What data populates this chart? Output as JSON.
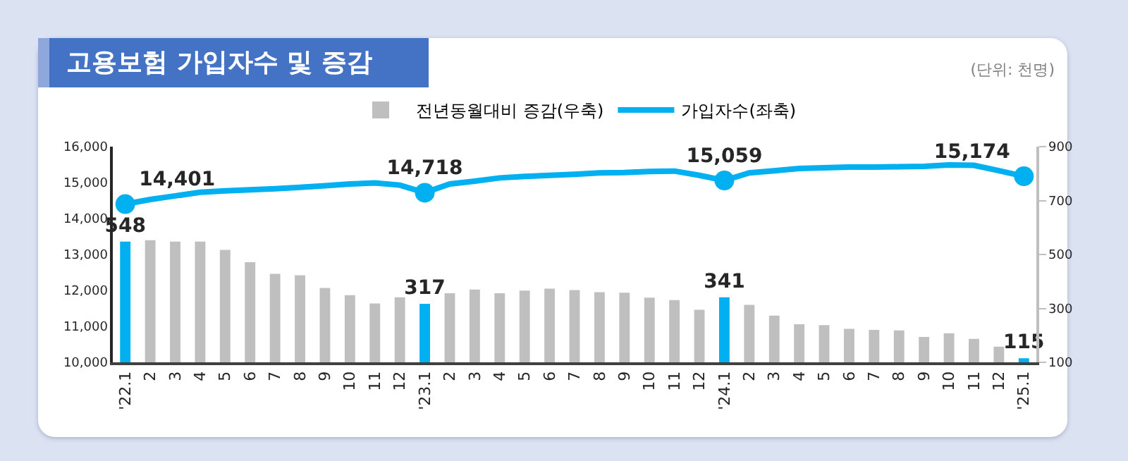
{
  "chart_data": {
    "type": "bar",
    "title": "고용보험 가입자수 및 증감",
    "annotations": [
      "(단위: 천명)"
    ],
    "categories": [
      "'22.1",
      "2",
      "3",
      "4",
      "5",
      "6",
      "7",
      "8",
      "9",
      "10",
      "11",
      "12",
      "'23.1",
      "2",
      "3",
      "4",
      "5",
      "6",
      "7",
      "8",
      "9",
      "10",
      "11",
      "12",
      "'24.1",
      "2",
      "3",
      "4",
      "5",
      "6",
      "7",
      "8",
      "9",
      "10",
      "11",
      "12",
      "'25.1"
    ],
    "series": [
      {
        "name": "전년동월대비 증감(우축)",
        "axis": "y2",
        "color": "#bfbfbf",
        "colors": [
          "#00b0f0",
          "#bfbfbf",
          "#bfbfbf",
          "#bfbfbf",
          "#bfbfbf",
          "#bfbfbf",
          "#bfbfbf",
          "#bfbfbf",
          "#bfbfbf",
          "#bfbfbf",
          "#bfbfbf",
          "#bfbfbf",
          "#00b0f0",
          "#bfbfbf",
          "#bfbfbf",
          "#bfbfbf",
          "#bfbfbf",
          "#bfbfbf",
          "#bfbfbf",
          "#bfbfbf",
          "#bfbfbf",
          "#bfbfbf",
          "#bfbfbf",
          "#bfbfbf",
          "#00b0f0",
          "#bfbfbf",
          "#bfbfbf",
          "#bfbfbf",
          "#bfbfbf",
          "#bfbfbf",
          "#bfbfbf",
          "#bfbfbf",
          "#bfbfbf",
          "#bfbfbf",
          "#bfbfbf",
          "#bfbfbf",
          "#00b0f0"
        ],
        "values": [
          548,
          553,
          548,
          548,
          517,
          471,
          428,
          423,
          376,
          349,
          318,
          341,
          317,
          356,
          370,
          356,
          366,
          373,
          368,
          360,
          358,
          340,
          331,
          295,
          341,
          313,
          273,
          241,
          238,
          224,
          220,
          218,
          194,
          208,
          187,
          158,
          115
        ],
        "value_labels": [
          "548",
          null,
          null,
          null,
          null,
          null,
          null,
          null,
          null,
          null,
          null,
          null,
          "317",
          null,
          null,
          null,
          null,
          null,
          null,
          null,
          null,
          null,
          null,
          null,
          "341",
          null,
          null,
          null,
          null,
          null,
          null,
          null,
          null,
          null,
          null,
          null,
          "115"
        ]
      },
      {
        "name": "가입자수(좌축)",
        "type": "line",
        "color": "#00b0f0",
        "line_style": "solid",
        "values": [
          14401,
          14530,
          14630,
          14730,
          14770,
          14800,
          14830,
          14870,
          14910,
          14960,
          14990,
          14930,
          14718,
          14960,
          15040,
          15130,
          15170,
          15200,
          15230,
          15270,
          15280,
          15310,
          15320,
          15200,
          15059,
          15270,
          15330,
          15390,
          15410,
          15430,
          15430,
          15440,
          15450,
          15490,
          15480,
          15330,
          15174
        ],
        "value_labels": [
          "14,401",
          null,
          null,
          null,
          null,
          null,
          null,
          null,
          null,
          null,
          null,
          null,
          "14,718",
          null,
          null,
          null,
          null,
          null,
          null,
          null,
          null,
          null,
          null,
          null,
          "15,059",
          null,
          null,
          null,
          null,
          null,
          null,
          null,
          null,
          null,
          null,
          null,
          "15,174"
        ]
      }
    ],
    "ylim": [
      10000,
      16000
    ],
    "yticks": [
      {
        "value": 10000,
        "label": "10,000"
      },
      {
        "value": 11000,
        "label": "11,000"
      },
      {
        "value": 12000,
        "label": "12,000"
      },
      {
        "value": 13000,
        "label": "13,000"
      },
      {
        "value": 14000,
        "label": "14,000"
      },
      {
        "value": 15000,
        "label": "15,000"
      },
      {
        "value": 16000,
        "label": "16,000"
      }
    ],
    "y2lim": [
      100,
      900
    ],
    "y2ticks": [
      100,
      300,
      500,
      700,
      900
    ],
    "grid": false,
    "legend": "top"
  }
}
